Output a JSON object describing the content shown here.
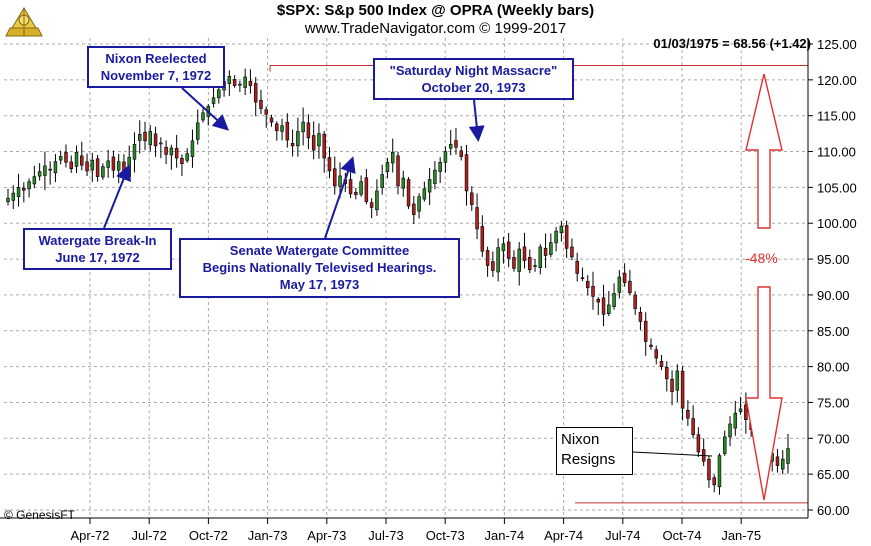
{
  "header": {
    "title": "$SPX:  S&p 500 Index @ OPRA  (Weekly bars)",
    "subtitle": "www.TradeNavigator.com © 1999-2017",
    "readout": "01/03/1975 = 68.56 (+1.42)",
    "copyright": "© GenesisFT"
  },
  "colors": {
    "up": "#2a8a2a",
    "down": "#b02020",
    "grid": "#aaaaaa",
    "callout_border": "#1a1aa0",
    "callout_text": "#1a1aa0",
    "level_line": "#c03030",
    "arrow": "#e03030"
  },
  "icons": {
    "logo": "sextant-logo-icon"
  },
  "annotations": {
    "nixon_reelected": [
      "Nixon Reelected",
      "November 7, 1972"
    ],
    "watergate_breakin": [
      "Watergate Break-In",
      "June 17, 1972"
    ],
    "senate_committee": [
      "Senate Watergate Committee",
      "Begins Nationally Televised Hearings.",
      "May 17, 1973"
    ],
    "saturday_massacre": [
      "\"Saturday Night Massacre\"",
      "October 20, 1973"
    ],
    "nixon_resigns": [
      "Nixon",
      "Resigns"
    ],
    "decline_pct": "-48%"
  },
  "chart_data": {
    "type": "candlestick",
    "title": "$SPX:  S&p 500 Index @ OPRA  (Weekly bars)",
    "x_tick_labels": [
      "Apr-72",
      "Jul-72",
      "Oct-72",
      "Jan-73",
      "Apr-73",
      "Jul-73",
      "Oct-73",
      "Jan-74",
      "Apr-74",
      "Jul-74",
      "Oct-74",
      "Jan-75"
    ],
    "y_tick_labels": [
      "60.00",
      "65.00",
      "70.00",
      "75.00",
      "80.00",
      "85.00",
      "90.00",
      "95.00",
      "100.00",
      "105.00",
      "110.00",
      "115.00",
      "120.00",
      "125.00"
    ],
    "ylim": [
      60,
      125
    ],
    "grid": true,
    "reference_levels": {
      "high": 122,
      "low": 61
    },
    "weekly_closes": [
      103.5,
      104.2,
      105.0,
      104.6,
      105.8,
      106.5,
      107.2,
      108.0,
      107.4,
      108.6,
      109.3,
      108.5,
      107.6,
      109.9,
      108.1,
      107.3,
      108.8,
      106.5,
      107.9,
      108.7,
      107.4,
      108.6,
      106.8,
      109.2,
      111.0,
      112.4,
      111.5,
      112.8,
      110.8,
      111.2,
      109.6,
      110.5,
      109.1,
      108.3,
      109.7,
      111.5,
      114.0,
      115.4,
      116.3,
      117.5,
      118.6,
      119.8,
      120.5,
      119.2,
      119.4,
      120.4,
      119.2,
      116.9,
      116.0,
      115.2,
      114.1,
      112.9,
      113.6,
      111.6,
      110.8,
      112.8,
      114.1,
      111.9,
      110.2,
      112.5,
      109.1,
      107.3,
      105.2,
      106.6,
      105.5,
      104.1,
      104.0,
      105.8,
      103.0,
      102.2,
      104.5,
      106.8,
      108.5,
      109.9,
      105.2,
      106.3,
      102.4,
      101.2,
      103.7,
      104.8,
      106.1,
      107.4,
      108.5,
      110.0,
      111.0,
      110.6,
      109.3,
      104.5,
      102.6,
      99.2,
      96.1,
      94.1,
      93.4,
      96.6,
      97.1,
      95.1,
      93.7,
      96.4,
      94.8,
      93.5,
      94.1,
      96.7,
      95.5,
      97.3,
      98.9,
      99.6,
      96.5,
      95.3,
      93.0,
      92.4,
      91.0,
      89.8,
      89.0,
      87.3,
      88.6,
      90.2,
      92.5,
      91.7,
      90.3,
      88.1,
      86.3,
      83.5,
      82.8,
      81.2,
      80.0,
      78.3,
      76.5,
      79.4,
      74.2,
      72.8,
      70.5,
      68.1,
      66.8,
      64.2,
      63.5,
      67.6,
      70.2,
      72.0,
      73.5,
      74.1,
      72.6,
      71.2,
      69.8,
      68.1,
      66.7,
      67.9,
      66.2,
      67.1,
      68.56
    ]
  }
}
